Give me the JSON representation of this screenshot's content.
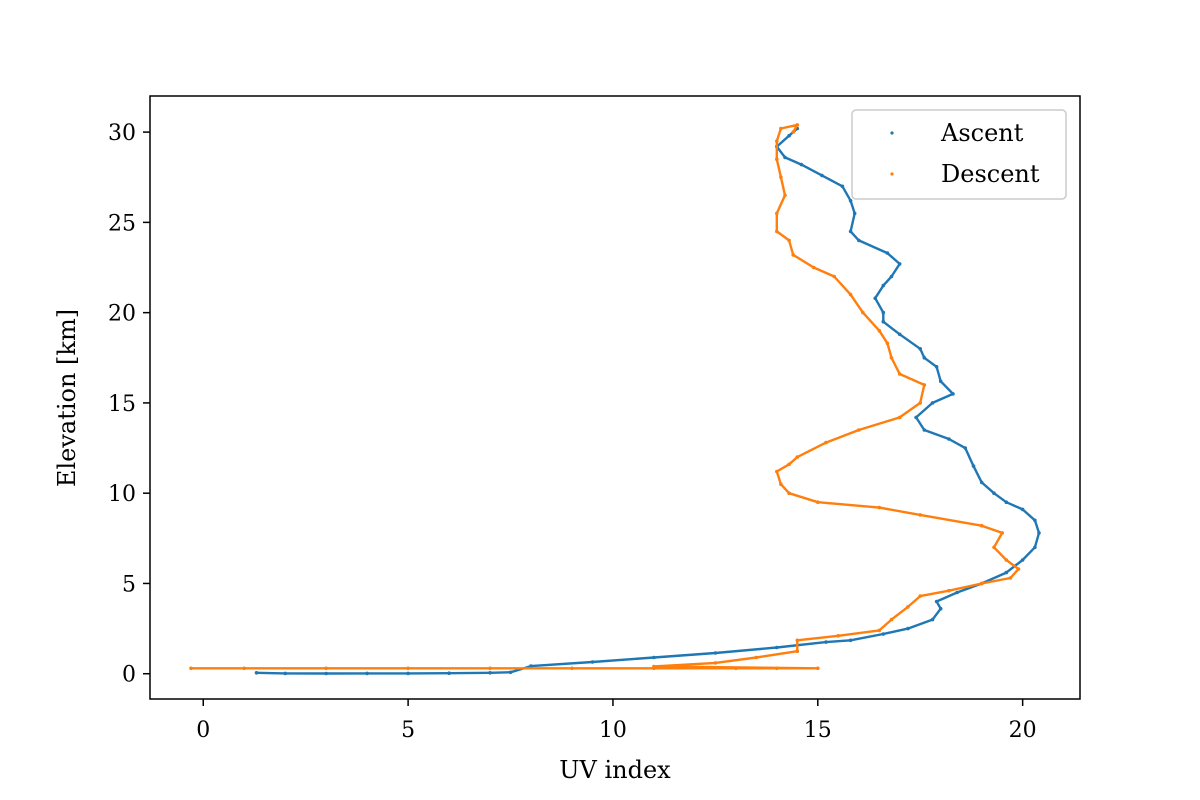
{
  "chart_data": {
    "type": "scatter",
    "title": "",
    "xlabel": "UV index",
    "ylabel": "Elevation [km]",
    "xlim": [
      -1.3,
      21.4
    ],
    "ylim": [
      -1.4,
      32.0
    ],
    "xticks": [
      0,
      5,
      10,
      15,
      20
    ],
    "yticks": [
      0,
      5,
      10,
      15,
      20,
      25,
      30
    ],
    "grid": false,
    "legend_position": "top-right",
    "series": [
      {
        "name": "Ascent",
        "color": "#1f77b4",
        "points": [
          [
            1.3,
            0.05
          ],
          [
            2.0,
            0.02
          ],
          [
            3.0,
            0.01
          ],
          [
            4.0,
            0.02
          ],
          [
            5.0,
            0.02
          ],
          [
            6.0,
            0.03
          ],
          [
            7.0,
            0.05
          ],
          [
            7.5,
            0.08
          ],
          [
            8.0,
            0.42
          ],
          [
            9.5,
            0.65
          ],
          [
            11.0,
            0.9
          ],
          [
            12.5,
            1.15
          ],
          [
            14.0,
            1.45
          ],
          [
            15.2,
            1.75
          ],
          [
            15.8,
            1.85
          ],
          [
            16.6,
            2.2
          ],
          [
            17.2,
            2.5
          ],
          [
            17.8,
            3.0
          ],
          [
            18.0,
            3.6
          ],
          [
            17.9,
            4.0
          ],
          [
            18.4,
            4.5
          ],
          [
            19.0,
            5.0
          ],
          [
            19.6,
            5.6
          ],
          [
            20.0,
            6.3
          ],
          [
            20.3,
            7.0
          ],
          [
            20.4,
            7.8
          ],
          [
            20.3,
            8.5
          ],
          [
            20.0,
            9.1
          ],
          [
            19.6,
            9.5
          ],
          [
            19.3,
            10.0
          ],
          [
            19.0,
            10.6
          ],
          [
            18.8,
            11.5
          ],
          [
            18.6,
            12.5
          ],
          [
            18.2,
            13.0
          ],
          [
            17.6,
            13.5
          ],
          [
            17.4,
            14.2
          ],
          [
            17.8,
            15.0
          ],
          [
            18.3,
            15.5
          ],
          [
            18.0,
            16.2
          ],
          [
            17.9,
            17.0
          ],
          [
            17.6,
            17.5
          ],
          [
            17.5,
            18.0
          ],
          [
            17.0,
            18.8
          ],
          [
            16.6,
            19.5
          ],
          [
            16.6,
            20.0
          ],
          [
            16.4,
            20.8
          ],
          [
            16.6,
            21.5
          ],
          [
            16.8,
            22.0
          ],
          [
            17.0,
            22.7
          ],
          [
            16.7,
            23.3
          ],
          [
            16.0,
            24.0
          ],
          [
            15.8,
            24.5
          ],
          [
            15.9,
            25.5
          ],
          [
            15.8,
            26.2
          ],
          [
            15.6,
            27.0
          ],
          [
            15.1,
            27.6
          ],
          [
            14.6,
            28.2
          ],
          [
            14.2,
            28.6
          ],
          [
            14.0,
            29.2
          ],
          [
            14.3,
            29.8
          ],
          [
            14.5,
            30.2
          ]
        ]
      },
      {
        "name": "Descent",
        "color": "#ff7f0e",
        "points": [
          [
            -0.3,
            0.3
          ],
          [
            1.0,
            0.3
          ],
          [
            3.0,
            0.3
          ],
          [
            5.0,
            0.3
          ],
          [
            7.0,
            0.3
          ],
          [
            9.0,
            0.3
          ],
          [
            11.0,
            0.3
          ],
          [
            13.0,
            0.3
          ],
          [
            14.0,
            0.3
          ],
          [
            15.0,
            0.3
          ],
          [
            11.0,
            0.4
          ],
          [
            12.5,
            0.6
          ],
          [
            13.5,
            0.9
          ],
          [
            14.5,
            1.25
          ],
          [
            14.5,
            1.85
          ],
          [
            15.5,
            2.1
          ],
          [
            16.5,
            2.4
          ],
          [
            16.8,
            3.0
          ],
          [
            17.2,
            3.7
          ],
          [
            17.5,
            4.3
          ],
          [
            18.2,
            4.6
          ],
          [
            19.0,
            5.0
          ],
          [
            19.7,
            5.3
          ],
          [
            19.9,
            5.8
          ],
          [
            19.6,
            6.3
          ],
          [
            19.3,
            7.0
          ],
          [
            19.5,
            7.8
          ],
          [
            19.0,
            8.2
          ],
          [
            17.5,
            8.8
          ],
          [
            16.5,
            9.2
          ],
          [
            15.0,
            9.5
          ],
          [
            14.3,
            10.0
          ],
          [
            14.1,
            10.5
          ],
          [
            14.0,
            11.2
          ],
          [
            14.3,
            11.6
          ],
          [
            14.5,
            12.0
          ],
          [
            15.2,
            12.8
          ],
          [
            16.0,
            13.5
          ],
          [
            17.0,
            14.2
          ],
          [
            17.5,
            15.0
          ],
          [
            17.6,
            16.0
          ],
          [
            17.0,
            16.6
          ],
          [
            16.8,
            17.5
          ],
          [
            16.7,
            18.3
          ],
          [
            16.5,
            19.0
          ],
          [
            16.1,
            20.0
          ],
          [
            15.8,
            21.0
          ],
          [
            15.4,
            22.0
          ],
          [
            14.9,
            22.5
          ],
          [
            14.4,
            23.2
          ],
          [
            14.3,
            24.0
          ],
          [
            14.0,
            24.5
          ],
          [
            14.0,
            25.5
          ],
          [
            14.2,
            26.5
          ],
          [
            14.1,
            27.5
          ],
          [
            14.0,
            28.5
          ],
          [
            14.0,
            29.5
          ],
          [
            14.1,
            30.2
          ],
          [
            14.5,
            30.4
          ],
          [
            14.4,
            30.0
          ]
        ]
      }
    ]
  }
}
